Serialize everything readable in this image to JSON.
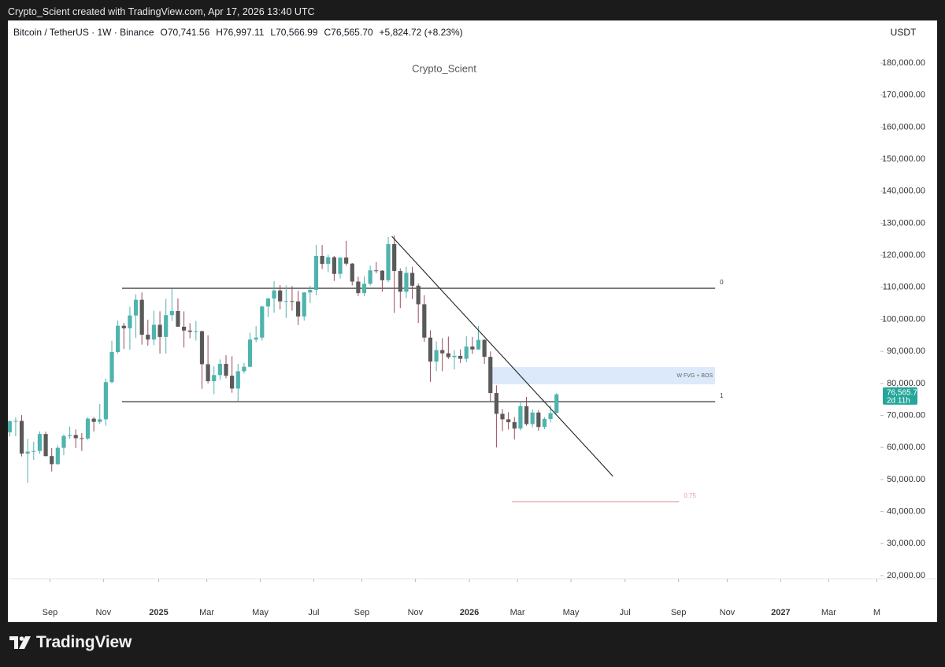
{
  "top_caption": "Crypto_Scient created with TradingView.com, Apr 17, 2026 13:40 UTC",
  "footer_brand": "TradingView",
  "chart_data": {
    "type": "candlestick",
    "title": "Bitcoin / TetherUS · 1W · Binance",
    "header": {
      "open": "O70,741.56",
      "high": "H76,997.11",
      "low": "L70,566.99",
      "close": "C76,565.70",
      "change": "+5,824.72 (+8.23%)"
    },
    "watermark": "Crypto_Scient",
    "currency": "USDT",
    "open": [
      64700,
      68200,
      68300,
      58100,
      58700,
      58900,
      64200,
      57300,
      54800,
      59900,
      63600,
      63900,
      62900,
      62800,
      69000,
      68000,
      68800,
      80400,
      89800,
      98000,
      97200,
      101200,
      106100,
      95200,
      93700,
      98300,
      94500,
      101300,
      102600,
      97700,
      96500,
      96100,
      96300,
      86000,
      80700,
      82600,
      86100,
      82400,
      78400,
      83800,
      85200,
      93700,
      94300,
      104000,
      106500,
      109000,
      105600,
      105700,
      105600,
      100900,
      108400,
      109200,
      119800,
      117300,
      119400,
      114200,
      119300,
      117400,
      111800,
      108200,
      111100,
      115300,
      115200,
      112200,
      123500,
      115100,
      108600,
      114500,
      110500,
      104700,
      94300,
      86800,
      90400,
      89400,
      88200,
      88600,
      87700,
      91500,
      90600,
      93600,
      88300,
      77000,
      70500,
      68800,
      67900,
      65900,
      72900,
      67300,
      70900,
      66400,
      68900,
      70741.56
    ],
    "high": [
      68500,
      69400,
      70100,
      62700,
      61800,
      65000,
      64900,
      59800,
      60700,
      64100,
      66500,
      65600,
      64500,
      69400,
      69500,
      73600,
      81500,
      93300,
      99600,
      98900,
      103900,
      107800,
      108400,
      99900,
      102700,
      102500,
      106400,
      109600,
      106500,
      102500,
      98800,
      99500,
      96500,
      95000,
      85300,
      87500,
      88800,
      88500,
      86100,
      86400,
      95800,
      97900,
      104300,
      106700,
      111900,
      110700,
      110600,
      110400,
      108900,
      108500,
      110500,
      123200,
      123200,
      120200,
      119800,
      119300,
      124500,
      117600,
      113300,
      113400,
      116800,
      117900,
      115400,
      125700,
      126200,
      115900,
      116400,
      116400,
      111200,
      107500,
      96600,
      93100,
      94100,
      94600,
      90400,
      90600,
      94800,
      94500,
      97900,
      93800,
      90000,
      79400,
      72000,
      71000,
      69500,
      74000,
      75800,
      71900,
      71600,
      69500,
      73100,
      76997.11
    ],
    "low": [
      63400,
      63500,
      57200,
      49000,
      56100,
      58000,
      57200,
      52500,
      54600,
      57600,
      62700,
      59800,
      58900,
      62400,
      65000,
      67400,
      66800,
      80000,
      89400,
      90800,
      90500,
      94200,
      92100,
      91800,
      91900,
      89300,
      89300,
      99500,
      97700,
      91200,
      94100,
      93400,
      78300,
      80000,
      76600,
      81200,
      81600,
      77100,
      74500,
      83100,
      85100,
      92900,
      93400,
      100700,
      102100,
      103100,
      100400,
      102700,
      98200,
      99600,
      105100,
      107500,
      115700,
      114700,
      112000,
      112700,
      116800,
      110600,
      107300,
      107300,
      110600,
      114400,
      108600,
      111600,
      102000,
      103500,
      106600,
      106300,
      98900,
      93000,
      80500,
      83900,
      83800,
      87600,
      84400,
      86400,
      86600,
      89200,
      90500,
      86100,
      74500,
      60000,
      65100,
      65600,
      62500,
      65300,
      66800,
      66300,
      65200,
      65700,
      67800,
      70566.99
    ],
    "close": [
      68200,
      68300,
      58100,
      58700,
      58900,
      64200,
      57300,
      54800,
      59900,
      63600,
      63900,
      62900,
      62800,
      69000,
      68000,
      68800,
      80400,
      89800,
      98000,
      97200,
      101200,
      106100,
      95200,
      93700,
      98300,
      94500,
      101300,
      102600,
      97700,
      96500,
      96100,
      96300,
      86000,
      80700,
      82600,
      86100,
      82400,
      78400,
      83800,
      85200,
      93700,
      94300,
      104000,
      106500,
      109000,
      105600,
      105700,
      105600,
      100900,
      108400,
      109200,
      119800,
      117300,
      119400,
      114200,
      119300,
      117400,
      111800,
      108200,
      111100,
      115300,
      115200,
      112200,
      123500,
      115100,
      108600,
      114500,
      110500,
      104700,
      94300,
      86800,
      90400,
      89400,
      88200,
      88600,
      87700,
      91500,
      90600,
      93600,
      88300,
      77000,
      70500,
      68800,
      67900,
      65900,
      72900,
      67300,
      70900,
      66400,
      68900,
      70700,
      76565.7
    ],
    "up_color": "#4fb3ae",
    "down_color": "#5a5a5a",
    "down_wick_color": "#9a4a5c",
    "last_price_label": "76,565.70",
    "countdown": "2d 11h",
    "ylim": [
      19000,
      187400
    ],
    "yticks": [
      {
        "value": 20000,
        "label": "20,000.00"
      },
      {
        "value": 30000,
        "label": "30,000.00"
      },
      {
        "value": 40000,
        "label": "40,000.00"
      },
      {
        "value": 50000,
        "label": "50,000.00"
      },
      {
        "value": 60000,
        "label": "60,000.00"
      },
      {
        "value": 70000,
        "label": "70,000.00"
      },
      {
        "value": 80000,
        "label": "80,000.00"
      },
      {
        "value": 90000,
        "label": "90,000.00"
      },
      {
        "value": 100000,
        "label": "100,000.00"
      },
      {
        "value": 110000,
        "label": "110,000.00"
      },
      {
        "value": 120000,
        "label": "120,000.00"
      },
      {
        "value": 130000,
        "label": "130,000.00"
      },
      {
        "value": 140000,
        "label": "140,000.00"
      },
      {
        "value": 150000,
        "label": "150,000.00"
      },
      {
        "value": 160000,
        "label": "160,000.00"
      },
      {
        "value": 170000,
        "label": "170,000.00"
      },
      {
        "value": 180000,
        "label": "180,000.00"
      }
    ],
    "xlim": [
      -0.3,
      144.9
    ],
    "xticks": [
      {
        "value": 6.7,
        "label": "Sep"
      },
      {
        "value": 15.6,
        "label": "Nov"
      },
      {
        "value": 24.8,
        "label": "2025"
      },
      {
        "value": 32.8,
        "label": "Mar"
      },
      {
        "value": 41.7,
        "label": "May"
      },
      {
        "value": 50.6,
        "label": "Jul"
      },
      {
        "value": 58.6,
        "label": "Sep"
      },
      {
        "value": 67.5,
        "label": "Nov"
      },
      {
        "value": 76.5,
        "label": "2026"
      },
      {
        "value": 84.5,
        "label": "Mar"
      },
      {
        "value": 93.4,
        "label": "May"
      },
      {
        "value": 102.4,
        "label": "Jul"
      },
      {
        "value": 111.3,
        "label": "Sep"
      },
      {
        "value": 119.4,
        "label": "Nov"
      },
      {
        "value": 128.3,
        "label": "2027"
      },
      {
        "value": 136.3,
        "label": "Mar"
      },
      {
        "value": 144.3,
        "label": "M"
      }
    ],
    "levels": [
      {
        "value": 109700,
        "x": [
          18.7,
          117.4
        ],
        "label": "0",
        "color": "#222222"
      },
      {
        "value": 74300,
        "x": [
          18.7,
          117.4
        ],
        "label": "1",
        "color": "#222222"
      },
      {
        "value": 43100,
        "x": [
          83.6,
          111.4
        ],
        "label": "0.75",
        "color": "#e8a0a8"
      }
    ],
    "zone": {
      "x": [
        80.0,
        117.4
      ],
      "y": [
        79700,
        85100
      ],
      "label": "W FVG + BOS",
      "color": "#dbe9fb"
    },
    "trendline": {
      "x": [
        63.6,
        100.4
      ],
      "y": [
        125900,
        51000
      ],
      "color": "#222222"
    }
  }
}
